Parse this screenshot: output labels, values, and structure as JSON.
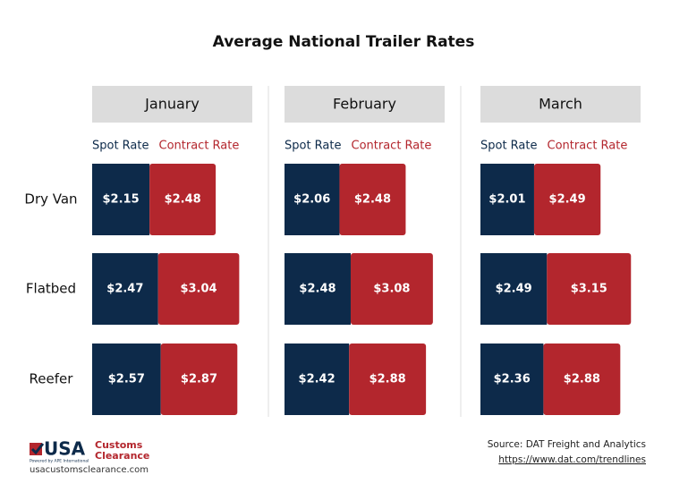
{
  "chart_data": {
    "type": "stacked-bar-panels",
    "title": "Average National Trailer Rates",
    "categories": [
      "Dry Van",
      "Flatbed",
      "Reefer"
    ],
    "xlim": [
      0,
      6
    ],
    "panels": [
      {
        "title": "January",
        "series": [
          {
            "name": "Spot Rate",
            "color": "#0d2a4a",
            "values": [
              2.15,
              2.47,
              2.57
            ],
            "value_labels": [
              "$2.15",
              "$2.47",
              "$2.57"
            ]
          },
          {
            "name": "Contract Rate",
            "color": "#b3262d",
            "values": [
              2.48,
              3.04,
              2.87
            ],
            "value_labels": [
              "$2.48",
              "$3.04",
              "$2.87"
            ]
          }
        ]
      },
      {
        "title": "February",
        "series": [
          {
            "name": "Spot Rate",
            "color": "#0d2a4a",
            "values": [
              2.06,
              2.48,
              2.42
            ],
            "value_labels": [
              "$2.06",
              "$2.48",
              "$2.42"
            ]
          },
          {
            "name": "Contract Rate",
            "color": "#b3262d",
            "values": [
              2.48,
              3.08,
              2.88
            ],
            "value_labels": [
              "$2.48",
              "$3.08",
              "$2.88"
            ]
          }
        ]
      },
      {
        "title": "March",
        "series": [
          {
            "name": "Spot Rate",
            "color": "#0d2a4a",
            "values": [
              2.01,
              2.49,
              2.36
            ],
            "value_labels": [
              "$2.01",
              "$2.49",
              "$2.36"
            ]
          },
          {
            "name": "Contract Rate",
            "color": "#b3262d",
            "values": [
              2.49,
              3.15,
              2.88
            ],
            "value_labels": [
              "$2.49",
              "$3.15",
              "$2.88"
            ]
          }
        ]
      }
    ]
  },
  "logo": {
    "mark": "USA",
    "line1": "Customs",
    "line2": "Clearance",
    "tagline": "Powered by APE International",
    "site": "usacustomsclearance.com"
  },
  "source": {
    "text": "Source: DAT Freight and Analytics",
    "url": "https://www.dat.com/trendlines"
  }
}
